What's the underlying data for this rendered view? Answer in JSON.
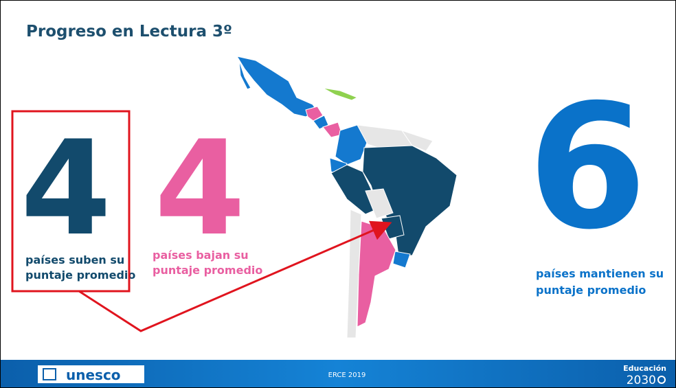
{
  "title": "Progreso en Lectura 3º",
  "stats": [
    {
      "number": 4,
      "label_lines": [
        "países suben su",
        "puntaje promedio"
      ]
    },
    {
      "number": 4,
      "label_lines": [
        "países bajan su",
        "puntaje promedio"
      ]
    },
    {
      "number": 6,
      "label_lines": [
        "países mantienen su",
        "puntaje promedio"
      ]
    }
  ],
  "footer": {
    "logo": "unesco",
    "center": "ERCE 2019",
    "brand_top": "Educación",
    "brand_bottom": "2030"
  }
}
